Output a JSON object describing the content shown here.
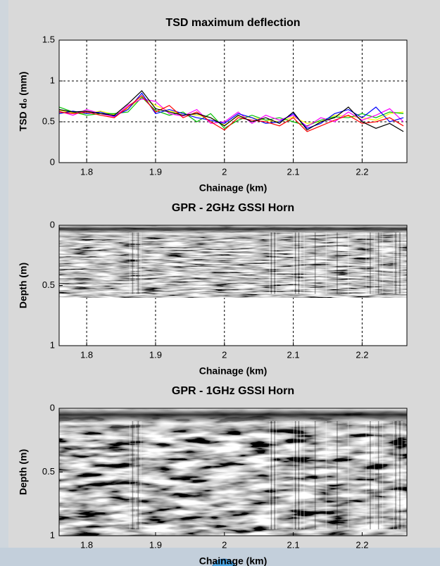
{
  "chart_data": [
    {
      "type": "line",
      "title": "TSD maximum deflection",
      "xlabel": "Chainage (km)",
      "ylabel": "TSD d₀ (mm)",
      "x": [
        1.76,
        1.78,
        1.8,
        1.82,
        1.84,
        1.86,
        1.88,
        1.9,
        1.92,
        1.94,
        1.96,
        1.98,
        2.0,
        2.02,
        2.04,
        2.06,
        2.08,
        2.1,
        2.12,
        2.14,
        2.16,
        2.18,
        2.2,
        2.22,
        2.24,
        2.26
      ],
      "series": [
        {
          "color": "#ffff00",
          "values": [
            0.64,
            0.61,
            0.6,
            0.63,
            0.59,
            0.66,
            0.8,
            0.7,
            0.63,
            0.6,
            0.58,
            0.55,
            0.46,
            0.57,
            0.55,
            0.52,
            0.5,
            0.56,
            0.48,
            0.5,
            0.58,
            0.57,
            0.55,
            0.52,
            0.6,
            0.62
          ]
        },
        {
          "color": "#00c000",
          "values": [
            0.68,
            0.62,
            0.58,
            0.6,
            0.6,
            0.62,
            0.8,
            0.64,
            0.58,
            0.62,
            0.5,
            0.6,
            0.42,
            0.52,
            0.58,
            0.52,
            0.55,
            0.5,
            0.45,
            0.52,
            0.56,
            0.55,
            0.6,
            0.55,
            0.62,
            0.6
          ]
        },
        {
          "color": "#ff00ff",
          "values": [
            0.63,
            0.58,
            0.65,
            0.6,
            0.56,
            0.7,
            0.78,
            0.75,
            0.6,
            0.57,
            0.65,
            0.48,
            0.5,
            0.62,
            0.48,
            0.58,
            0.52,
            0.58,
            0.44,
            0.55,
            0.5,
            0.62,
            0.52,
            0.58,
            0.66,
            0.5
          ]
        },
        {
          "color": "#0000ff",
          "values": [
            0.6,
            0.63,
            0.6,
            0.62,
            0.57,
            0.65,
            0.85,
            0.6,
            0.65,
            0.6,
            0.55,
            0.52,
            0.48,
            0.6,
            0.55,
            0.48,
            0.5,
            0.6,
            0.42,
            0.48,
            0.6,
            0.65,
            0.55,
            0.68,
            0.5,
            0.55
          ]
        },
        {
          "color": "#ff0000",
          "values": [
            0.62,
            0.6,
            0.62,
            0.58,
            0.55,
            0.68,
            0.82,
            0.62,
            0.7,
            0.55,
            0.62,
            0.5,
            0.4,
            0.55,
            0.52,
            0.5,
            0.45,
            0.55,
            0.38,
            0.45,
            0.52,
            0.58,
            0.48,
            0.5,
            0.55,
            0.45
          ]
        },
        {
          "color": "#000000",
          "values": [
            0.65,
            0.62,
            0.63,
            0.6,
            0.58,
            0.72,
            0.88,
            0.66,
            0.62,
            0.58,
            0.6,
            0.55,
            0.45,
            0.58,
            0.5,
            0.55,
            0.48,
            0.62,
            0.4,
            0.5,
            0.55,
            0.68,
            0.5,
            0.42,
            0.48,
            0.38
          ]
        }
      ],
      "xlim": [
        1.76,
        2.265
      ],
      "xticks": [
        1.8,
        1.9,
        2,
        2.1,
        2.2
      ],
      "ylim": [
        0,
        1.5
      ],
      "yticks": [
        0,
        0.5,
        1,
        1.5
      ],
      "grid": true
    },
    {
      "type": "image",
      "title": "GPR - 2GHz GSSI Horn",
      "xlabel": "Chainage (km)",
      "ylabel": "Depth (m)",
      "xlim": [
        1.76,
        2.265
      ],
      "xticks": [
        1.8,
        1.9,
        2,
        2.1,
        2.2
      ],
      "ylim": [
        1,
        0
      ],
      "yticks": [
        0,
        0.5,
        1
      ],
      "image_ylim": [
        0.6,
        0
      ],
      "grid": true
    },
    {
      "type": "image",
      "title": "GPR - 1GHz GSSI Horn",
      "xlabel": "Chainage (km)",
      "ylabel": "Depth (m)",
      "xlim": [
        1.76,
        2.265
      ],
      "xticks": [
        1.8,
        1.9,
        2,
        2.1,
        2.2
      ],
      "ylim": [
        1,
        0
      ],
      "yticks": [
        0,
        0.5,
        1
      ],
      "grid": true
    }
  ]
}
